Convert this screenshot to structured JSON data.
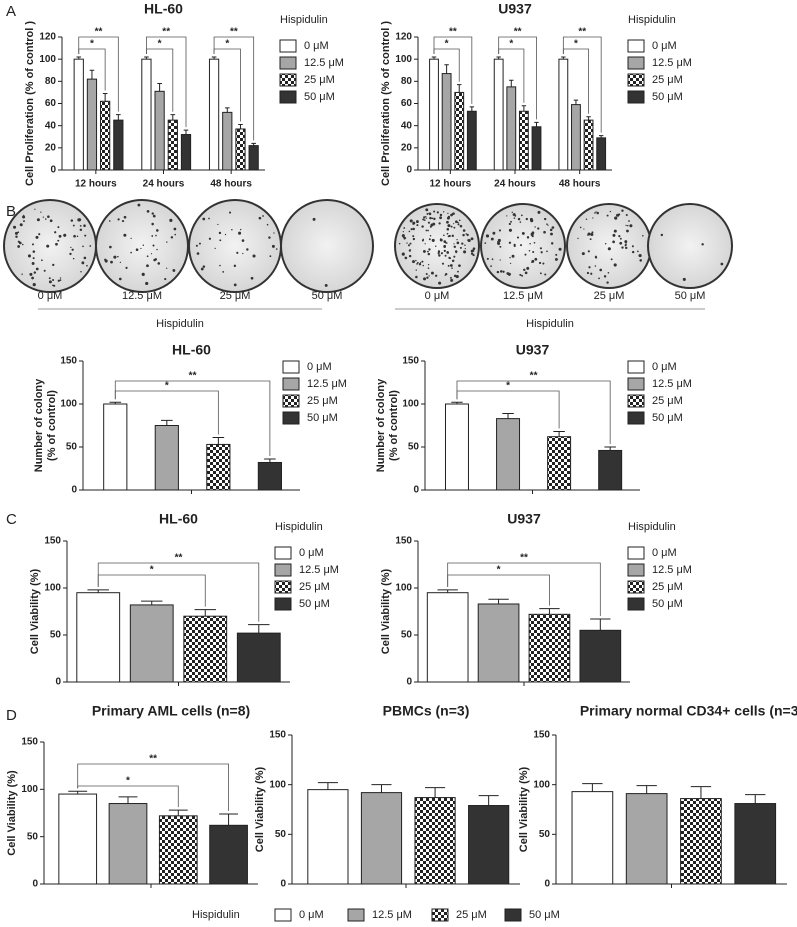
{
  "panel_labels": [
    "A",
    "B",
    "C",
    "D"
  ],
  "colony_assay": [
    {
      "labels": [
        "0 μM",
        "12.5 μM",
        "25 μM",
        "50 μM"
      ],
      "title": "Hispidulin"
    },
    {
      "labels": [
        "0 μM",
        "12.5 μM",
        "25 μM",
        "50 μM"
      ],
      "title": "Hispidulin"
    }
  ],
  "shared_legend": {
    "title": "Hispidulin",
    "items": [
      "0 μM",
      "12.5 μM",
      "25 μM",
      "50 μM"
    ]
  },
  "chart_data": [
    {
      "type": "bar",
      "title": "HL-60",
      "ylabel": "Cell Proliferation (% of control )",
      "legend_title": "Hispidulin",
      "categories": [
        "12 hours",
        "24 hours",
        "48 hours"
      ],
      "series": [
        {
          "name": "0 μM",
          "color": "#ffffff",
          "values": [
            100,
            100,
            100
          ],
          "errors": [
            2,
            2,
            2
          ]
        },
        {
          "name": "12.5 μM",
          "color": "#a6a6a6",
          "values": [
            82,
            71,
            52
          ],
          "errors": [
            8,
            7,
            4
          ]
        },
        {
          "name": "25 μM",
          "color": "#000000",
          "pattern": "checker",
          "values": [
            62,
            45,
            37
          ],
          "errors": [
            7,
            5,
            4
          ]
        },
        {
          "name": "50 μM",
          "color": "#333333",
          "values": [
            45,
            32,
            22
          ],
          "errors": [
            5,
            4,
            2
          ]
        }
      ],
      "ylim": [
        0,
        120
      ],
      "yticks": [
        0,
        20,
        40,
        60,
        80,
        100,
        120
      ],
      "annotations": [
        {
          "category": 0,
          "series": [
            0,
            3
          ],
          "text": "**"
        },
        {
          "category": 0,
          "series": [
            0,
            2
          ],
          "text": "*"
        },
        {
          "category": 1,
          "series": [
            0,
            3
          ],
          "text": "**"
        },
        {
          "category": 1,
          "series": [
            0,
            2
          ],
          "text": "*"
        },
        {
          "category": 2,
          "series": [
            0,
            3
          ],
          "text": "**"
        },
        {
          "category": 2,
          "series": [
            0,
            2
          ],
          "text": "*"
        }
      ]
    },
    {
      "type": "bar",
      "title": "U937",
      "ylabel": "Cell Proliferation (% of control )",
      "legend_title": "Hispidulin",
      "categories": [
        "12 hours",
        "24 hours",
        "48 hours"
      ],
      "series": [
        {
          "name": "0 μM",
          "color": "#ffffff",
          "values": [
            100,
            100,
            100
          ],
          "errors": [
            2,
            2,
            2
          ]
        },
        {
          "name": "12.5 μM",
          "color": "#a6a6a6",
          "values": [
            87,
            75,
            59
          ],
          "errors": [
            8,
            6,
            4
          ]
        },
        {
          "name": "25 μM",
          "color": "#000000",
          "pattern": "checker",
          "values": [
            70,
            53,
            45
          ],
          "errors": [
            7,
            5,
            3
          ]
        },
        {
          "name": "50 μM",
          "color": "#333333",
          "values": [
            53,
            39,
            29
          ],
          "errors": [
            4,
            4,
            2
          ]
        }
      ],
      "ylim": [
        0,
        120
      ],
      "yticks": [
        0,
        20,
        40,
        60,
        80,
        100,
        120
      ],
      "annotations": [
        {
          "category": 0,
          "series": [
            0,
            3
          ],
          "text": "**"
        },
        {
          "category": 0,
          "series": [
            0,
            2
          ],
          "text": "*"
        },
        {
          "category": 1,
          "series": [
            0,
            3
          ],
          "text": "**"
        },
        {
          "category": 1,
          "series": [
            0,
            2
          ],
          "text": "*"
        },
        {
          "category": 2,
          "series": [
            0,
            3
          ],
          "text": "**"
        },
        {
          "category": 2,
          "series": [
            0,
            2
          ],
          "text": "*"
        }
      ]
    },
    {
      "type": "bar",
      "title": "HL-60",
      "ylabel": [
        "Number of colony",
        "(% of control)"
      ],
      "series": [
        {
          "name": "0 μM",
          "color": "#ffffff",
          "values": [
            100
          ],
          "errors": [
            2
          ]
        },
        {
          "name": "12.5 μM",
          "color": "#a6a6a6",
          "values": [
            75
          ],
          "errors": [
            6
          ]
        },
        {
          "name": "25 μM",
          "color": "#000000",
          "pattern": "checker",
          "values": [
            53
          ],
          "errors": [
            8
          ]
        },
        {
          "name": "50 μM",
          "color": "#333333",
          "values": [
            32
          ],
          "errors": [
            4
          ]
        }
      ],
      "ylim": [
        0,
        150
      ],
      "yticks": [
        0,
        50,
        100,
        150
      ],
      "annotations": [
        {
          "category": 0,
          "series": [
            0,
            3
          ],
          "text": "**"
        },
        {
          "category": 0,
          "series": [
            0,
            2
          ],
          "text": "*"
        }
      ]
    },
    {
      "type": "bar",
      "title": "U937",
      "ylabel": [
        "Number of colony",
        "(% of control)"
      ],
      "series": [
        {
          "name": "0 μM",
          "color": "#ffffff",
          "values": [
            100
          ],
          "errors": [
            2
          ]
        },
        {
          "name": "12.5 μM",
          "color": "#a6a6a6",
          "values": [
            83
          ],
          "errors": [
            6
          ]
        },
        {
          "name": "25 μM",
          "color": "#000000",
          "pattern": "checker",
          "values": [
            62
          ],
          "errors": [
            6
          ]
        },
        {
          "name": "50 μM",
          "color": "#333333",
          "values": [
            46
          ],
          "errors": [
            4
          ]
        }
      ],
      "ylim": [
        0,
        150
      ],
      "yticks": [
        0,
        50,
        100,
        150
      ],
      "annotations": [
        {
          "category": 0,
          "series": [
            0,
            3
          ],
          "text": "**"
        },
        {
          "category": 0,
          "series": [
            0,
            2
          ],
          "text": "*"
        }
      ]
    },
    {
      "type": "bar",
      "title": "HL-60",
      "ylabel": "Cell Viability (%)",
      "legend_title": "Hispidulin",
      "series": [
        {
          "name": "0 μM",
          "color": "#ffffff",
          "values": [
            95
          ],
          "errors": [
            3
          ]
        },
        {
          "name": "12.5 μM",
          "color": "#a6a6a6",
          "values": [
            82
          ],
          "errors": [
            4
          ]
        },
        {
          "name": "25 μM",
          "color": "#000000",
          "pattern": "checker",
          "values": [
            70
          ],
          "errors": [
            7
          ]
        },
        {
          "name": "50 μM",
          "color": "#333333",
          "values": [
            52
          ],
          "errors": [
            9
          ]
        }
      ],
      "ylim": [
        0,
        150
      ],
      "yticks": [
        0,
        50,
        100,
        150
      ],
      "annotations": [
        {
          "category": 0,
          "series": [
            0,
            3
          ],
          "text": "**"
        },
        {
          "category": 0,
          "series": [
            0,
            2
          ],
          "text": "*"
        }
      ]
    },
    {
      "type": "bar",
      "title": "U937",
      "ylabel": "Cell Viability (%)",
      "legend_title": "Hispidulin",
      "series": [
        {
          "name": "0 μM",
          "color": "#ffffff",
          "values": [
            95
          ],
          "errors": [
            3
          ]
        },
        {
          "name": "12.5 μM",
          "color": "#a6a6a6",
          "values": [
            83
          ],
          "errors": [
            5
          ]
        },
        {
          "name": "25 μM",
          "color": "#000000",
          "pattern": "checker",
          "values": [
            72
          ],
          "errors": [
            6
          ]
        },
        {
          "name": "50 μM",
          "color": "#333333",
          "values": [
            55
          ],
          "errors": [
            12
          ]
        }
      ],
      "ylim": [
        0,
        150
      ],
      "yticks": [
        0,
        50,
        100,
        150
      ],
      "annotations": [
        {
          "category": 0,
          "series": [
            0,
            3
          ],
          "text": "**"
        },
        {
          "category": 0,
          "series": [
            0,
            2
          ],
          "text": "*"
        }
      ]
    },
    {
      "type": "bar",
      "title": "Primary AML cells (n=8)",
      "ylabel": "Cell Viability (%)",
      "series": [
        {
          "color": "#ffffff",
          "values": [
            95
          ],
          "errors": [
            3
          ]
        },
        {
          "color": "#a6a6a6",
          "values": [
            85
          ],
          "errors": [
            7
          ]
        },
        {
          "color": "#000000",
          "pattern": "checker",
          "values": [
            72
          ],
          "errors": [
            6
          ]
        },
        {
          "color": "#333333",
          "values": [
            62
          ],
          "errors": [
            12
          ]
        }
      ],
      "ylim": [
        0,
        150
      ],
      "yticks": [
        0,
        50,
        100,
        150
      ],
      "annotations": [
        {
          "category": 0,
          "series": [
            0,
            3
          ],
          "text": "**"
        },
        {
          "category": 0,
          "series": [
            0,
            2
          ],
          "text": "*"
        }
      ]
    },
    {
      "type": "bar",
      "title": "PBMCs (n=3)",
      "ylabel": "Cell Viability (%)",
      "series": [
        {
          "color": "#ffffff",
          "values": [
            95
          ],
          "errors": [
            7
          ]
        },
        {
          "color": "#a6a6a6",
          "values": [
            92
          ],
          "errors": [
            8
          ]
        },
        {
          "color": "#000000",
          "pattern": "checker",
          "values": [
            87
          ],
          "errors": [
            10
          ]
        },
        {
          "color": "#333333",
          "values": [
            79
          ],
          "errors": [
            10
          ]
        }
      ],
      "ylim": [
        0,
        150
      ],
      "yticks": [
        0,
        50,
        100,
        150
      ]
    },
    {
      "type": "bar",
      "title": "Primary normal CD34+ cells (n=3)",
      "ylabel": "Cell Viability (%)",
      "series": [
        {
          "color": "#ffffff",
          "values": [
            93
          ],
          "errors": [
            8
          ]
        },
        {
          "color": "#a6a6a6",
          "values": [
            91
          ],
          "errors": [
            8
          ]
        },
        {
          "color": "#000000",
          "pattern": "checker",
          "values": [
            86
          ],
          "errors": [
            12
          ]
        },
        {
          "color": "#333333",
          "values": [
            81
          ],
          "errors": [
            9
          ]
        }
      ],
      "ylim": [
        0,
        150
      ],
      "yticks": [
        0,
        50,
        100,
        150
      ]
    }
  ]
}
